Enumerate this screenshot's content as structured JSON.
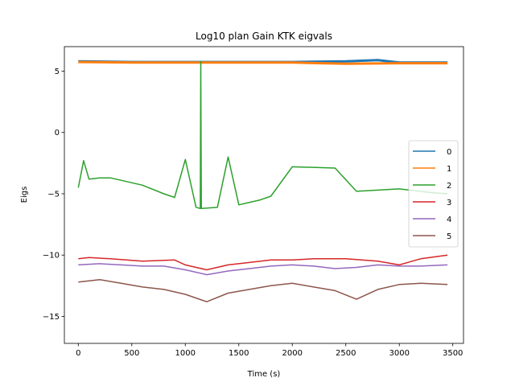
{
  "chart_data": {
    "type": "line",
    "title": "Log10 plan Gain KTK eigvals",
    "xlabel": "Time (s)",
    "ylabel": "Eigs",
    "xlim": [
      -130,
      3600
    ],
    "ylim": [
      -17.2,
      7.0
    ],
    "x_ticks": [
      0,
      500,
      1000,
      1500,
      2000,
      2500,
      3000,
      3500
    ],
    "x_tick_labels": [
      "0",
      "500",
      "1000",
      "1500",
      "2000",
      "2500",
      "3000",
      "3500"
    ],
    "y_ticks": [
      -15,
      -10,
      -5,
      0,
      5
    ],
    "y_tick_labels": [
      "−15",
      "−10",
      "−5",
      "0",
      "5"
    ],
    "grid": false,
    "legend_position": "right",
    "colors": {
      "0": "#1f77b4",
      "1": "#ff7f0e",
      "2": "#2ca02c",
      "3": "#d62728",
      "4": "#9467bd",
      "5": "#8c564b"
    },
    "series": [
      {
        "name": "0",
        "color": "#1f77b4",
        "x": [
          0,
          500,
          1000,
          1500,
          2000,
          2500,
          2800,
          3000,
          3450
        ],
        "y": [
          5.8,
          5.75,
          5.75,
          5.75,
          5.75,
          5.8,
          5.9,
          5.7,
          5.7
        ]
      },
      {
        "name": "1",
        "color": "#ff7f0e",
        "x": [
          0,
          500,
          1000,
          1500,
          2000,
          2500,
          3000,
          3450
        ],
        "y": [
          5.75,
          5.7,
          5.7,
          5.7,
          5.7,
          5.6,
          5.65,
          5.65
        ]
      },
      {
        "name": "2",
        "color": "#2ca02c",
        "x": [
          0,
          50,
          100,
          200,
          300,
          400,
          600,
          800,
          900,
          1000,
          1100,
          1140,
          1145,
          1150,
          1300,
          1400,
          1500,
          1700,
          1800,
          2000,
          2400,
          2600,
          3000,
          3300,
          3450
        ],
        "y": [
          -4.5,
          -2.3,
          -3.8,
          -3.7,
          -3.7,
          -3.9,
          -4.3,
          -5.0,
          -5.3,
          -2.2,
          -6.1,
          -6.2,
          5.8,
          -6.2,
          -6.1,
          -2.0,
          -5.9,
          -5.5,
          -5.2,
          -2.8,
          -2.9,
          -4.8,
          -4.6,
          -4.9,
          -5.0
        ]
      },
      {
        "name": "3",
        "color": "#d62728",
        "x": [
          0,
          100,
          300,
          600,
          900,
          1000,
          1100,
          1200,
          1400,
          1600,
          1800,
          2000,
          2200,
          2500,
          2800,
          3000,
          3200,
          3450
        ],
        "y": [
          -10.3,
          -10.2,
          -10.3,
          -10.5,
          -10.4,
          -10.8,
          -11.0,
          -11.2,
          -10.8,
          -10.6,
          -10.4,
          -10.4,
          -10.3,
          -10.3,
          -10.5,
          -10.8,
          -10.3,
          -10.0
        ]
      },
      {
        "name": "4",
        "color": "#9467bd",
        "x": [
          0,
          200,
          400,
          600,
          800,
          1000,
          1200,
          1400,
          1600,
          1800,
          2000,
          2200,
          2400,
          2600,
          2800,
          3000,
          3200,
          3450
        ],
        "y": [
          -10.8,
          -10.7,
          -10.8,
          -10.9,
          -10.9,
          -11.2,
          -11.6,
          -11.3,
          -11.1,
          -10.9,
          -10.8,
          -10.9,
          -11.1,
          -11.0,
          -10.8,
          -10.9,
          -10.9,
          -10.8
        ]
      },
      {
        "name": "5",
        "color": "#8c564b",
        "x": [
          0,
          200,
          400,
          600,
          800,
          1000,
          1200,
          1400,
          1600,
          1800,
          2000,
          2200,
          2400,
          2600,
          2800,
          3000,
          3200,
          3450
        ],
        "y": [
          -12.2,
          -12.0,
          -12.3,
          -12.6,
          -12.8,
          -13.2,
          -13.8,
          -13.1,
          -12.8,
          -12.5,
          -12.3,
          -12.6,
          -12.9,
          -13.6,
          -12.8,
          -12.4,
          -12.3,
          -12.4
        ]
      }
    ]
  }
}
